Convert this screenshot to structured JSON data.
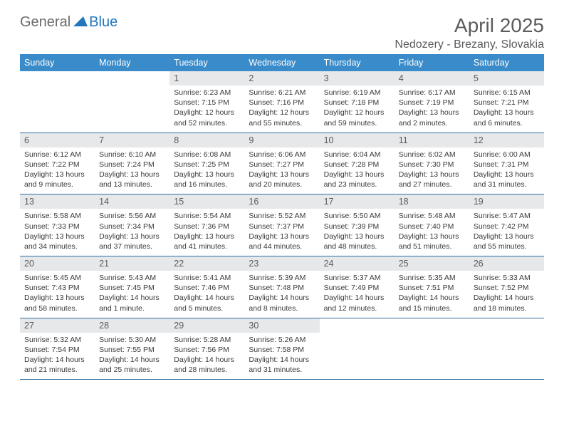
{
  "brand": {
    "part1": "General",
    "part2": "Blue"
  },
  "title": "April 2025",
  "location": "Nedozery - Brezany, Slovakia",
  "colors": {
    "header_bg": "#3a8bc9",
    "header_text": "#ffffff",
    "row_divider": "#2f6ea1",
    "daynum_bg": "#e7e8ea",
    "logo_gray": "#6c6c6c",
    "logo_blue": "#2176bd",
    "title_color": "#5c5c5c"
  },
  "day_headers": [
    "Sunday",
    "Monday",
    "Tuesday",
    "Wednesday",
    "Thursday",
    "Friday",
    "Saturday"
  ],
  "weeks": [
    [
      {
        "empty": true
      },
      {
        "empty": true
      },
      {
        "num": "1",
        "sunrise": "Sunrise: 6:23 AM",
        "sunset": "Sunset: 7:15 PM",
        "daylight": "Daylight: 12 hours and 52 minutes."
      },
      {
        "num": "2",
        "sunrise": "Sunrise: 6:21 AM",
        "sunset": "Sunset: 7:16 PM",
        "daylight": "Daylight: 12 hours and 55 minutes."
      },
      {
        "num": "3",
        "sunrise": "Sunrise: 6:19 AM",
        "sunset": "Sunset: 7:18 PM",
        "daylight": "Daylight: 12 hours and 59 minutes."
      },
      {
        "num": "4",
        "sunrise": "Sunrise: 6:17 AM",
        "sunset": "Sunset: 7:19 PM",
        "daylight": "Daylight: 13 hours and 2 minutes."
      },
      {
        "num": "5",
        "sunrise": "Sunrise: 6:15 AM",
        "sunset": "Sunset: 7:21 PM",
        "daylight": "Daylight: 13 hours and 6 minutes."
      }
    ],
    [
      {
        "num": "6",
        "sunrise": "Sunrise: 6:12 AM",
        "sunset": "Sunset: 7:22 PM",
        "daylight": "Daylight: 13 hours and 9 minutes."
      },
      {
        "num": "7",
        "sunrise": "Sunrise: 6:10 AM",
        "sunset": "Sunset: 7:24 PM",
        "daylight": "Daylight: 13 hours and 13 minutes."
      },
      {
        "num": "8",
        "sunrise": "Sunrise: 6:08 AM",
        "sunset": "Sunset: 7:25 PM",
        "daylight": "Daylight: 13 hours and 16 minutes."
      },
      {
        "num": "9",
        "sunrise": "Sunrise: 6:06 AM",
        "sunset": "Sunset: 7:27 PM",
        "daylight": "Daylight: 13 hours and 20 minutes."
      },
      {
        "num": "10",
        "sunrise": "Sunrise: 6:04 AM",
        "sunset": "Sunset: 7:28 PM",
        "daylight": "Daylight: 13 hours and 23 minutes."
      },
      {
        "num": "11",
        "sunrise": "Sunrise: 6:02 AM",
        "sunset": "Sunset: 7:30 PM",
        "daylight": "Daylight: 13 hours and 27 minutes."
      },
      {
        "num": "12",
        "sunrise": "Sunrise: 6:00 AM",
        "sunset": "Sunset: 7:31 PM",
        "daylight": "Daylight: 13 hours and 31 minutes."
      }
    ],
    [
      {
        "num": "13",
        "sunrise": "Sunrise: 5:58 AM",
        "sunset": "Sunset: 7:33 PM",
        "daylight": "Daylight: 13 hours and 34 minutes."
      },
      {
        "num": "14",
        "sunrise": "Sunrise: 5:56 AM",
        "sunset": "Sunset: 7:34 PM",
        "daylight": "Daylight: 13 hours and 37 minutes."
      },
      {
        "num": "15",
        "sunrise": "Sunrise: 5:54 AM",
        "sunset": "Sunset: 7:36 PM",
        "daylight": "Daylight: 13 hours and 41 minutes."
      },
      {
        "num": "16",
        "sunrise": "Sunrise: 5:52 AM",
        "sunset": "Sunset: 7:37 PM",
        "daylight": "Daylight: 13 hours and 44 minutes."
      },
      {
        "num": "17",
        "sunrise": "Sunrise: 5:50 AM",
        "sunset": "Sunset: 7:39 PM",
        "daylight": "Daylight: 13 hours and 48 minutes."
      },
      {
        "num": "18",
        "sunrise": "Sunrise: 5:48 AM",
        "sunset": "Sunset: 7:40 PM",
        "daylight": "Daylight: 13 hours and 51 minutes."
      },
      {
        "num": "19",
        "sunrise": "Sunrise: 5:47 AM",
        "sunset": "Sunset: 7:42 PM",
        "daylight": "Daylight: 13 hours and 55 minutes."
      }
    ],
    [
      {
        "num": "20",
        "sunrise": "Sunrise: 5:45 AM",
        "sunset": "Sunset: 7:43 PM",
        "daylight": "Daylight: 13 hours and 58 minutes."
      },
      {
        "num": "21",
        "sunrise": "Sunrise: 5:43 AM",
        "sunset": "Sunset: 7:45 PM",
        "daylight": "Daylight: 14 hours and 1 minute."
      },
      {
        "num": "22",
        "sunrise": "Sunrise: 5:41 AM",
        "sunset": "Sunset: 7:46 PM",
        "daylight": "Daylight: 14 hours and 5 minutes."
      },
      {
        "num": "23",
        "sunrise": "Sunrise: 5:39 AM",
        "sunset": "Sunset: 7:48 PM",
        "daylight": "Daylight: 14 hours and 8 minutes."
      },
      {
        "num": "24",
        "sunrise": "Sunrise: 5:37 AM",
        "sunset": "Sunset: 7:49 PM",
        "daylight": "Daylight: 14 hours and 12 minutes."
      },
      {
        "num": "25",
        "sunrise": "Sunrise: 5:35 AM",
        "sunset": "Sunset: 7:51 PM",
        "daylight": "Daylight: 14 hours and 15 minutes."
      },
      {
        "num": "26",
        "sunrise": "Sunrise: 5:33 AM",
        "sunset": "Sunset: 7:52 PM",
        "daylight": "Daylight: 14 hours and 18 minutes."
      }
    ],
    [
      {
        "num": "27",
        "sunrise": "Sunrise: 5:32 AM",
        "sunset": "Sunset: 7:54 PM",
        "daylight": "Daylight: 14 hours and 21 minutes."
      },
      {
        "num": "28",
        "sunrise": "Sunrise: 5:30 AM",
        "sunset": "Sunset: 7:55 PM",
        "daylight": "Daylight: 14 hours and 25 minutes."
      },
      {
        "num": "29",
        "sunrise": "Sunrise: 5:28 AM",
        "sunset": "Sunset: 7:56 PM",
        "daylight": "Daylight: 14 hours and 28 minutes."
      },
      {
        "num": "30",
        "sunrise": "Sunrise: 5:26 AM",
        "sunset": "Sunset: 7:58 PM",
        "daylight": "Daylight: 14 hours and 31 minutes."
      },
      {
        "empty": true
      },
      {
        "empty": true
      },
      {
        "empty": true
      }
    ]
  ]
}
